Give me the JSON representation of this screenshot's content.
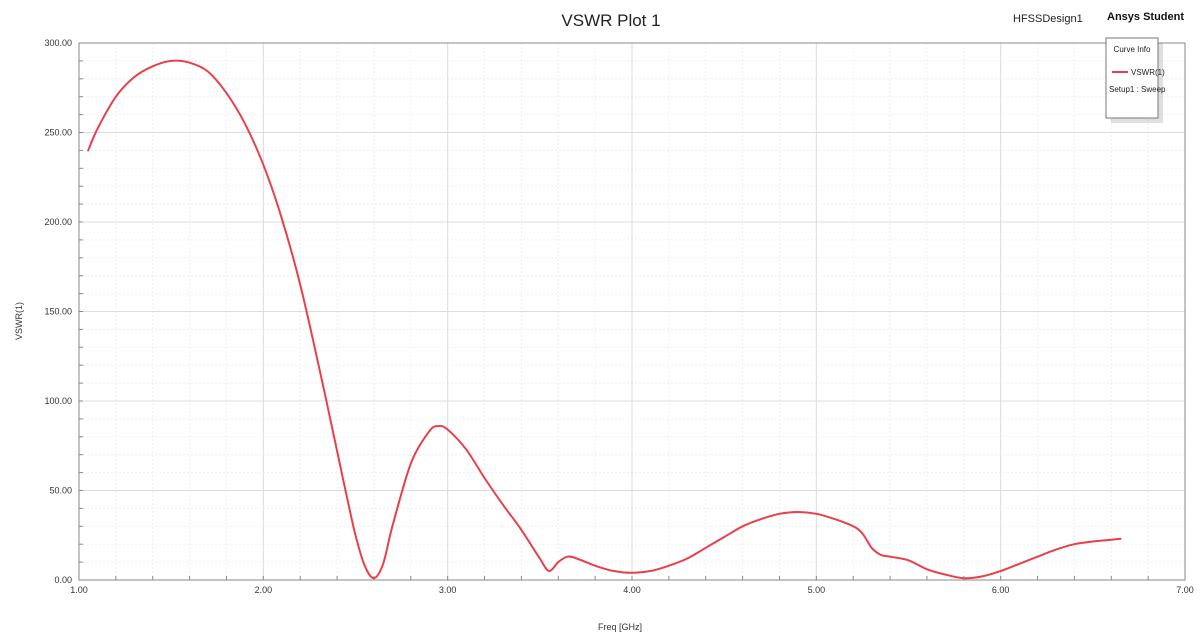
{
  "header": {
    "design_name": "HFSSDesign1",
    "brand": "Ansys Student"
  },
  "colors": {
    "curve": "#e8404a",
    "grid": "#dcdcdc",
    "grid_minor": "#efefef",
    "axis": "#888888"
  },
  "legend": {
    "title": "Curve Info",
    "entry": "VSWR(1)",
    "sub": "Setup1 : Sweep"
  },
  "chart_data": {
    "type": "line",
    "title": "VSWR Plot 1",
    "xlabel": "Freq [GHz]",
    "ylabel": "VSWR(1)",
    "xlim": [
      1.0,
      7.0
    ],
    "ylim": [
      0.0,
      300.0
    ],
    "xticks": [
      "1.00",
      "2.00",
      "3.00",
      "4.00",
      "5.00",
      "6.00",
      "7.00"
    ],
    "yticks": [
      "0.00",
      "50.00",
      "100.00",
      "150.00",
      "200.00",
      "250.00",
      "300.00"
    ],
    "grid": true,
    "legend_position": "top-right",
    "series": [
      {
        "name": "VSWR(1)",
        "points": [
          [
            1.05,
            240
          ],
          [
            1.1,
            252
          ],
          [
            1.2,
            270
          ],
          [
            1.3,
            281
          ],
          [
            1.4,
            287
          ],
          [
            1.5,
            290
          ],
          [
            1.6,
            289
          ],
          [
            1.7,
            284
          ],
          [
            1.8,
            272
          ],
          [
            1.9,
            255
          ],
          [
            2.0,
            232
          ],
          [
            2.1,
            202
          ],
          [
            2.2,
            165
          ],
          [
            2.3,
            120
          ],
          [
            2.4,
            72
          ],
          [
            2.45,
            48
          ],
          [
            2.5,
            25
          ],
          [
            2.55,
            8
          ],
          [
            2.6,
            1
          ],
          [
            2.65,
            9
          ],
          [
            2.7,
            30
          ],
          [
            2.8,
            65
          ],
          [
            2.9,
            83
          ],
          [
            2.95,
            86
          ],
          [
            3.0,
            84
          ],
          [
            3.1,
            73
          ],
          [
            3.2,
            57
          ],
          [
            3.3,
            42
          ],
          [
            3.4,
            28
          ],
          [
            3.5,
            12
          ],
          [
            3.55,
            5
          ],
          [
            3.6,
            10
          ],
          [
            3.65,
            13
          ],
          [
            3.7,
            12
          ],
          [
            3.8,
            8
          ],
          [
            3.9,
            5
          ],
          [
            4.0,
            4
          ],
          [
            4.1,
            5
          ],
          [
            4.2,
            8
          ],
          [
            4.3,
            12
          ],
          [
            4.4,
            18
          ],
          [
            4.5,
            24
          ],
          [
            4.6,
            30
          ],
          [
            4.7,
            34
          ],
          [
            4.8,
            37
          ],
          [
            4.9,
            38
          ],
          [
            5.0,
            37
          ],
          [
            5.1,
            34
          ],
          [
            5.2,
            30
          ],
          [
            5.25,
            26
          ],
          [
            5.3,
            18
          ],
          [
            5.35,
            14
          ],
          [
            5.4,
            13
          ],
          [
            5.5,
            11
          ],
          [
            5.6,
            6
          ],
          [
            5.7,
            3
          ],
          [
            5.8,
            1
          ],
          [
            5.9,
            2
          ],
          [
            6.0,
            5
          ],
          [
            6.1,
            9
          ],
          [
            6.2,
            13
          ],
          [
            6.3,
            17
          ],
          [
            6.4,
            20
          ],
          [
            6.5,
            21.5
          ],
          [
            6.6,
            22.5
          ],
          [
            6.65,
            23
          ]
        ]
      }
    ]
  }
}
